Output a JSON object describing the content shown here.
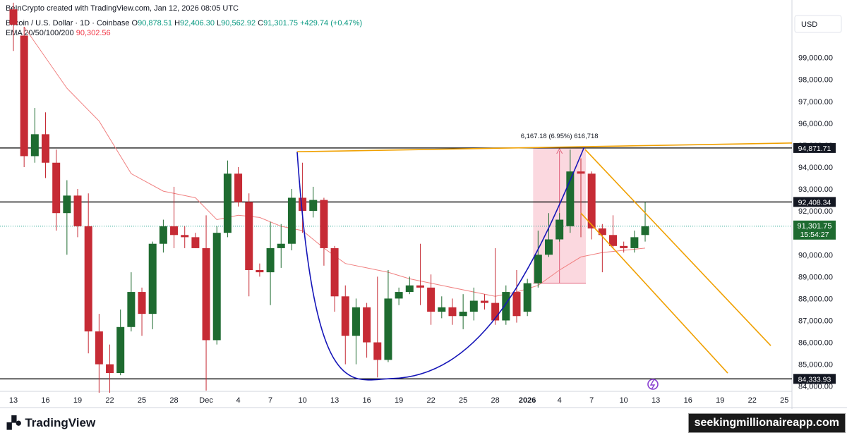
{
  "header": {
    "credit": "BeInCrypto created with TradingView.com, Jan 12, 2026 08:05 UTC",
    "symbol": "Bitcoin / U.S. Dollar · 1D · Coinbase",
    "o_label": "O",
    "o": "90,878.51",
    "h_label": "H",
    "h": "92,406.30",
    "l_label": "L",
    "l": "90,562.92",
    "c_label": "C",
    "c": "91,301.75",
    "change": "+429.74 (+0.47%)",
    "ema_label": "EMA 20/50/100/200",
    "ema_value": "90,302.56"
  },
  "footer": {
    "brand": "TradingView",
    "logo_icon": "tradingview-logo-icon",
    "watermark": "seekingmillionaireapp.com"
  },
  "colors": {
    "up": "#1e6b30",
    "down": "#c62b35",
    "ema": "#f08080",
    "cup": "#1515b8",
    "channel": "#f0a000",
    "level": "#000000",
    "highlight": "#f8b8c4"
  },
  "chart_data": {
    "type": "candlestick",
    "currency": "USD",
    "y_ticks": [
      "99,000.00",
      "98,000.00",
      "97,000.00",
      "96,000.00",
      "95,000.00",
      "94,000.00",
      "93,000.00",
      "92,000.00",
      "91,000.00",
      "90,000.00",
      "89,000.00",
      "88,000.00",
      "87,000.00",
      "86,000.00",
      "85,000.00",
      "84,000.00"
    ],
    "ylim": [
      83700,
      100500
    ],
    "x_ticks": [
      "13",
      "16",
      "19",
      "22",
      "25",
      "28",
      "Dec",
      "4",
      "7",
      "10",
      "13",
      "16",
      "19",
      "22",
      "25",
      "28",
      "2026",
      "4",
      "7",
      "10",
      "13",
      "16",
      "19",
      "22",
      "25"
    ],
    "levels": [
      {
        "label": "94,871.71",
        "value": 94871.71
      },
      {
        "label": "92,408.34",
        "value": 92408.34
      },
      {
        "label": "84,333.93",
        "value": 84333.93
      }
    ],
    "last_price": {
      "label": "91,301.75",
      "timer": "15:54:27",
      "value": 91301.75
    },
    "measure": {
      "label": "6,167.18 (6.95%) 616,718",
      "from_index": 49,
      "to_index": 53,
      "low": 88700,
      "high": 94871.71
    },
    "candles": [
      {
        "o": 101200,
        "h": 101500,
        "l": 99300,
        "c": 100500
      },
      {
        "o": 100000,
        "h": 100400,
        "l": 94000,
        "c": 94500
      },
      {
        "o": 94500,
        "h": 96700,
        "l": 94200,
        "c": 95500
      },
      {
        "o": 95500,
        "h": 96500,
        "l": 93500,
        "c": 94200
      },
      {
        "o": 94200,
        "h": 94800,
        "l": 91100,
        "c": 91900
      },
      {
        "o": 91900,
        "h": 93400,
        "l": 90000,
        "c": 92700
      },
      {
        "o": 92700,
        "h": 93000,
        "l": 90800,
        "c": 91300
      },
      {
        "o": 91300,
        "h": 92800,
        "l": 85500,
        "c": 86500
      },
      {
        "o": 86500,
        "h": 87300,
        "l": 83500,
        "c": 85000
      },
      {
        "o": 85000,
        "h": 85900,
        "l": 83500,
        "c": 84600
      },
      {
        "o": 84600,
        "h": 87500,
        "l": 84500,
        "c": 86700
      },
      {
        "o": 86700,
        "h": 89200,
        "l": 86500,
        "c": 88300
      },
      {
        "o": 88300,
        "h": 88500,
        "l": 86300,
        "c": 87300
      },
      {
        "o": 87300,
        "h": 90600,
        "l": 86600,
        "c": 90500
      },
      {
        "o": 90500,
        "h": 91600,
        "l": 90100,
        "c": 91300
      },
      {
        "o": 91300,
        "h": 93100,
        "l": 90300,
        "c": 90900
      },
      {
        "o": 90900,
        "h": 91300,
        "l": 90300,
        "c": 90800
      },
      {
        "o": 90800,
        "h": 91000,
        "l": 90300,
        "c": 90300
      },
      {
        "o": 90300,
        "h": 91800,
        "l": 83800,
        "c": 86100
      },
      {
        "o": 86100,
        "h": 91300,
        "l": 85900,
        "c": 91000
      },
      {
        "o": 91000,
        "h": 94300,
        "l": 90800,
        "c": 93700
      },
      {
        "o": 93700,
        "h": 94000,
        "l": 92200,
        "c": 92400
      },
      {
        "o": 92400,
        "h": 92800,
        "l": 88100,
        "c": 89300
      },
      {
        "o": 89300,
        "h": 89600,
        "l": 89000,
        "c": 89200
      },
      {
        "o": 89200,
        "h": 91500,
        "l": 87700,
        "c": 90300
      },
      {
        "o": 90300,
        "h": 91400,
        "l": 89400,
        "c": 90500
      },
      {
        "o": 90500,
        "h": 93000,
        "l": 90200,
        "c": 92600
      },
      {
        "o": 92600,
        "h": 94200,
        "l": 91000,
        "c": 92000
      },
      {
        "o": 92000,
        "h": 93100,
        "l": 91700,
        "c": 92500
      },
      {
        "o": 92500,
        "h": 92600,
        "l": 89500,
        "c": 90300
      },
      {
        "o": 90300,
        "h": 90400,
        "l": 87400,
        "c": 88100
      },
      {
        "o": 88100,
        "h": 88600,
        "l": 85000,
        "c": 86300
      },
      {
        "o": 86300,
        "h": 88000,
        "l": 85000,
        "c": 87600
      },
      {
        "o": 87600,
        "h": 87800,
        "l": 85300,
        "c": 86000
      },
      {
        "o": 86000,
        "h": 89000,
        "l": 84400,
        "c": 85200
      },
      {
        "o": 85200,
        "h": 89300,
        "l": 85100,
        "c": 88000
      },
      {
        "o": 88000,
        "h": 88500,
        "l": 87700,
        "c": 88300
      },
      {
        "o": 88300,
        "h": 89000,
        "l": 88200,
        "c": 88600
      },
      {
        "o": 88600,
        "h": 90500,
        "l": 87700,
        "c": 88500
      },
      {
        "o": 88500,
        "h": 89100,
        "l": 86800,
        "c": 87400
      },
      {
        "o": 87400,
        "h": 88100,
        "l": 87100,
        "c": 87600
      },
      {
        "o": 87600,
        "h": 88000,
        "l": 86800,
        "c": 87200
      },
      {
        "o": 87200,
        "h": 88200,
        "l": 86600,
        "c": 87400
      },
      {
        "o": 87400,
        "h": 88500,
        "l": 87000,
        "c": 87900
      },
      {
        "o": 87900,
        "h": 88200,
        "l": 87500,
        "c": 87800
      },
      {
        "o": 87800,
        "h": 90300,
        "l": 86800,
        "c": 87000
      },
      {
        "o": 87000,
        "h": 88600,
        "l": 86800,
        "c": 88300
      },
      {
        "o": 88300,
        "h": 89300,
        "l": 86900,
        "c": 87200
      },
      {
        "o": 87400,
        "h": 88900,
        "l": 87200,
        "c": 88700
      },
      {
        "o": 88700,
        "h": 91100,
        "l": 88500,
        "c": 90000
      },
      {
        "o": 90000,
        "h": 91900,
        "l": 89900,
        "c": 90700
      },
      {
        "o": 90700,
        "h": 91900,
        "l": 90600,
        "c": 91600
      },
      {
        "o": 91300,
        "h": 94800,
        "l": 91000,
        "c": 93800
      },
      {
        "o": 93800,
        "h": 94400,
        "l": 90800,
        "c": 93700
      },
      {
        "o": 93700,
        "h": 93800,
        "l": 90700,
        "c": 91200
      },
      {
        "o": 91200,
        "h": 91400,
        "l": 89200,
        "c": 90900
      },
      {
        "o": 90900,
        "h": 91800,
        "l": 90300,
        "c": 90400
      },
      {
        "o": 90400,
        "h": 90600,
        "l": 90100,
        "c": 90300
      },
      {
        "o": 90300,
        "h": 91100,
        "l": 90100,
        "c": 90800
      },
      {
        "o": 90900,
        "h": 92400,
        "l": 90600,
        "c": 91300
      }
    ],
    "ema": [
      [
        1,
        100400
      ],
      [
        5,
        97600
      ],
      [
        8,
        96100
      ],
      [
        11,
        93700
      ],
      [
        14,
        92900
      ],
      [
        17,
        92600
      ],
      [
        19,
        91600
      ],
      [
        21,
        91800
      ],
      [
        23,
        91700
      ],
      [
        25,
        91300
      ],
      [
        27,
        91100
      ],
      [
        29,
        90300
      ],
      [
        31,
        89600
      ],
      [
        33,
        89400
      ],
      [
        35,
        89200
      ],
      [
        37,
        88900
      ],
      [
        40,
        88600
      ],
      [
        43,
        88300
      ],
      [
        45,
        88100
      ],
      [
        47,
        88300
      ],
      [
        49,
        88600
      ],
      [
        51,
        89300
      ],
      [
        53,
        89900
      ],
      [
        55,
        90100
      ],
      [
        57,
        90200
      ],
      [
        59,
        90300
      ]
    ]
  }
}
